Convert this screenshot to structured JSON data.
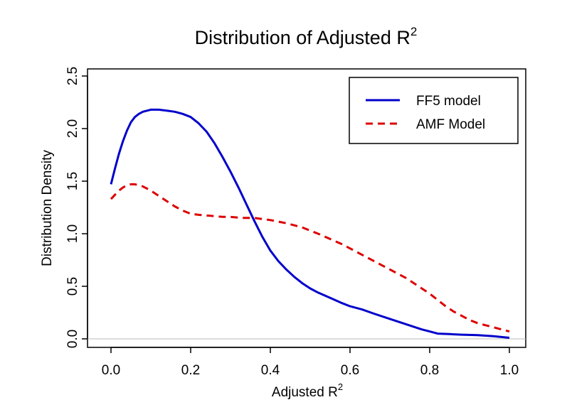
{
  "chart_data": {
    "type": "line",
    "title": "Distribution of Adjusted R",
    "title_superscript": "2",
    "xlabel": "Adjusted R",
    "xlabel_superscript": "2",
    "ylabel": "Distribution Density",
    "xlim": [
      0.0,
      1.0
    ],
    "ylim": [
      0.0,
      2.5
    ],
    "xticks": [
      "0.0",
      "0.2",
      "0.4",
      "0.6",
      "0.8",
      "1.0"
    ],
    "yticks": [
      "0.0",
      "0.5",
      "1.0",
      "1.5",
      "2.0",
      "2.5"
    ],
    "legend_position": "top-right",
    "baseline_y": 0,
    "series": [
      {
        "name": "FF5 model",
        "color": "#0000cc",
        "style": "solid",
        "x": [
          0.0,
          0.01,
          0.02,
          0.03,
          0.04,
          0.05,
          0.06,
          0.07,
          0.08,
          0.1,
          0.12,
          0.14,
          0.16,
          0.18,
          0.2,
          0.22,
          0.24,
          0.26,
          0.28,
          0.3,
          0.32,
          0.34,
          0.36,
          0.38,
          0.4,
          0.42,
          0.44,
          0.46,
          0.48,
          0.5,
          0.52,
          0.55,
          0.58,
          0.6,
          0.63,
          0.66,
          0.7,
          0.74,
          0.78,
          0.8,
          0.82,
          0.85,
          0.88,
          0.92,
          0.96,
          1.0
        ],
        "y": [
          1.47,
          1.62,
          1.76,
          1.88,
          1.98,
          2.06,
          2.11,
          2.14,
          2.16,
          2.18,
          2.18,
          2.17,
          2.16,
          2.14,
          2.11,
          2.05,
          1.97,
          1.86,
          1.73,
          1.59,
          1.44,
          1.28,
          1.12,
          0.97,
          0.84,
          0.74,
          0.66,
          0.59,
          0.53,
          0.48,
          0.44,
          0.39,
          0.34,
          0.31,
          0.28,
          0.24,
          0.19,
          0.14,
          0.09,
          0.07,
          0.05,
          0.045,
          0.04,
          0.035,
          0.025,
          0.01
        ]
      },
      {
        "name": "AMF Model",
        "color": "#dd0000",
        "style": "dashed",
        "x": [
          0.0,
          0.01,
          0.02,
          0.03,
          0.04,
          0.05,
          0.06,
          0.08,
          0.1,
          0.12,
          0.14,
          0.16,
          0.18,
          0.2,
          0.22,
          0.25,
          0.28,
          0.3,
          0.33,
          0.36,
          0.4,
          0.44,
          0.48,
          0.5,
          0.52,
          0.55,
          0.58,
          0.6,
          0.63,
          0.66,
          0.7,
          0.74,
          0.78,
          0.8,
          0.82,
          0.84,
          0.86,
          0.88,
          0.9,
          0.92,
          0.94,
          0.96,
          0.98,
          1.0
        ],
        "y": [
          1.33,
          1.37,
          1.41,
          1.44,
          1.46,
          1.47,
          1.47,
          1.45,
          1.41,
          1.36,
          1.31,
          1.26,
          1.22,
          1.19,
          1.18,
          1.17,
          1.16,
          1.16,
          1.15,
          1.15,
          1.13,
          1.1,
          1.06,
          1.03,
          1.0,
          0.95,
          0.9,
          0.86,
          0.8,
          0.74,
          0.66,
          0.58,
          0.48,
          0.43,
          0.37,
          0.31,
          0.26,
          0.22,
          0.18,
          0.15,
          0.13,
          0.11,
          0.09,
          0.07
        ]
      }
    ]
  }
}
